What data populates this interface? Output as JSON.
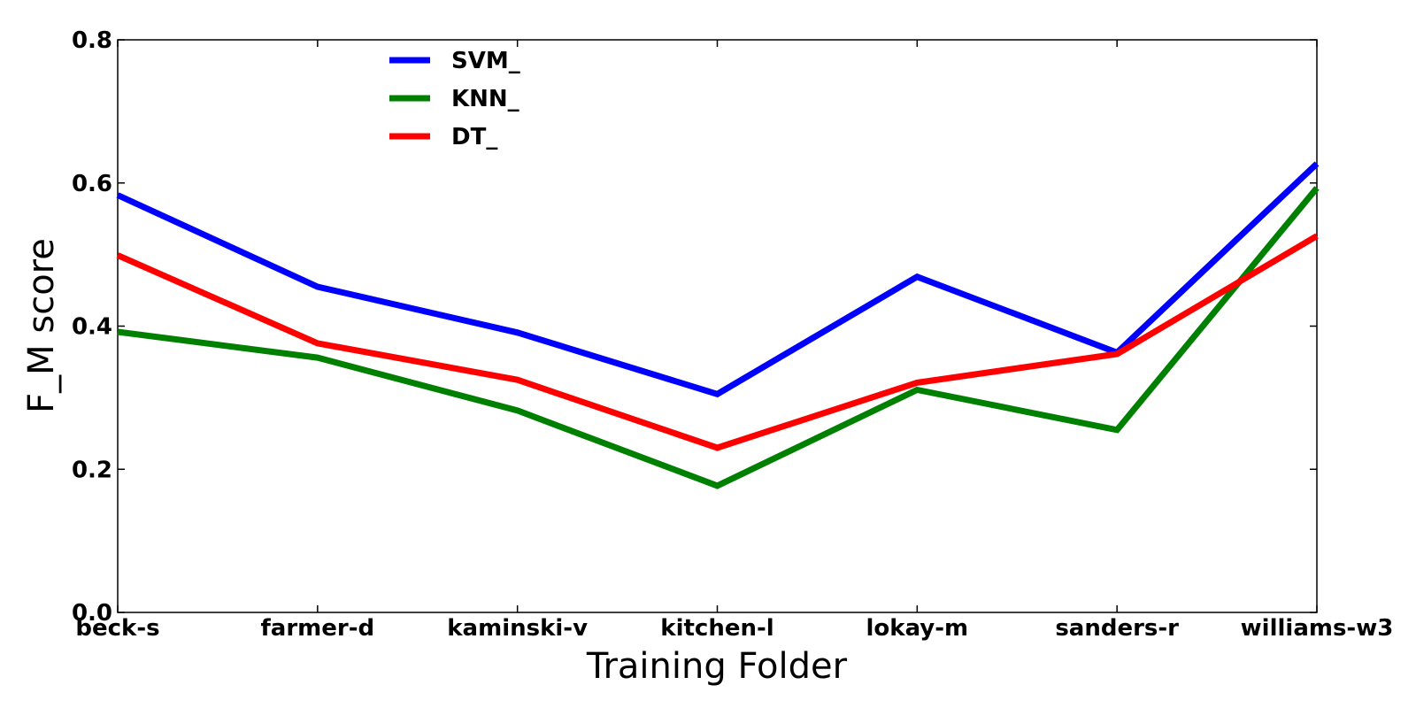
{
  "chart_data": {
    "type": "line",
    "categories": [
      "beck-s",
      "farmer-d",
      "kaminski-v",
      "kitchen-l",
      "lokay-m",
      "sanders-r",
      "williams-w3"
    ],
    "series": [
      {
        "name": "SVM_",
        "color": "#0000ff",
        "values": [
          0.583,
          0.455,
          0.391,
          0.305,
          0.469,
          0.363,
          0.627
        ]
      },
      {
        "name": "KNN_",
        "color": "#008000",
        "values": [
          0.392,
          0.356,
          0.282,
          0.177,
          0.311,
          0.255,
          0.593
        ]
      },
      {
        "name": "DT_",
        "color": "#ff0000",
        "values": [
          0.499,
          0.376,
          0.325,
          0.23,
          0.321,
          0.361,
          0.526
        ]
      }
    ],
    "xlabel": "Training Folder",
    "ylabel": "F_M score",
    "ylim": [
      0.0,
      0.8
    ],
    "yticks": [
      "0.0",
      "0.2",
      "0.4",
      "0.6",
      "0.8"
    ],
    "grid": false,
    "legend_position": "top-left"
  }
}
